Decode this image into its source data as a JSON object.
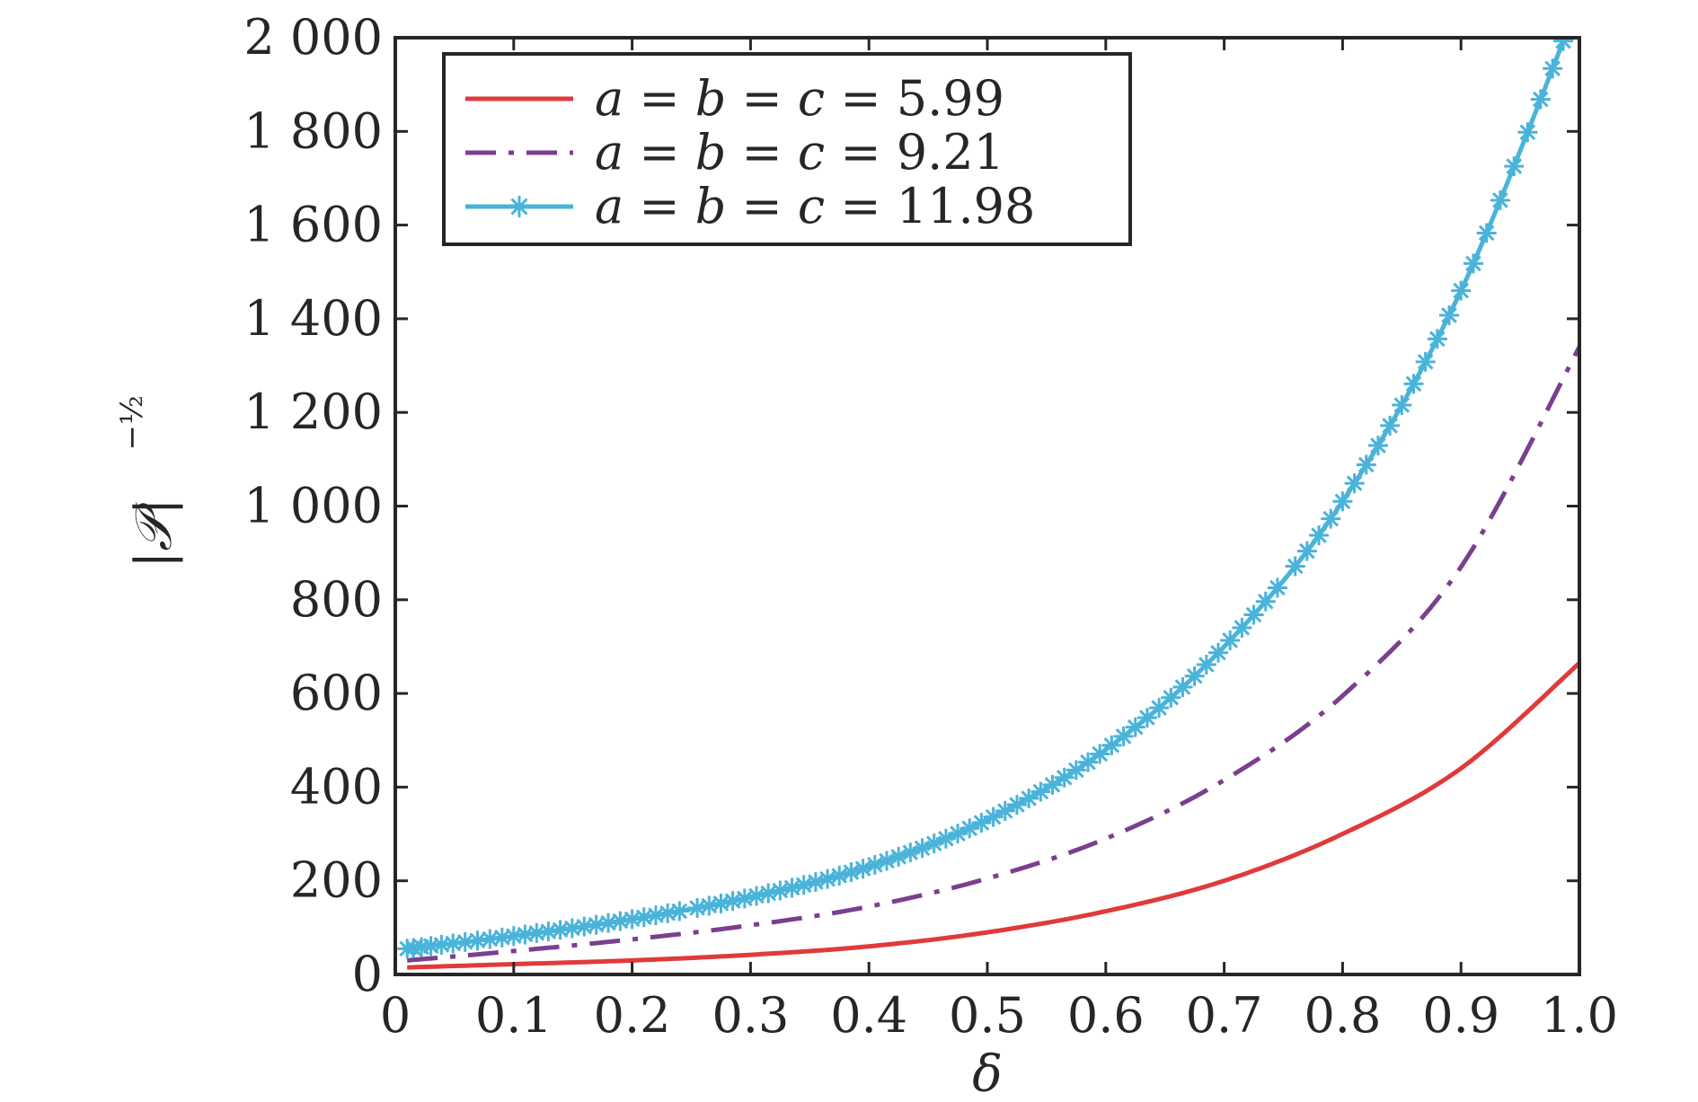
{
  "chart_data": {
    "type": "line",
    "title": "",
    "xlabel": "δ",
    "ylabel": "|𝒫|",
    "ylabel_exponent": "−½",
    "xlim": [
      0,
      1.0
    ],
    "ylim": [
      0,
      2000
    ],
    "xticks": [
      "0",
      "0.1",
      "0.2",
      "0.3",
      "0.4",
      "0.5",
      "0.6",
      "0.7",
      "0.8",
      "0.9",
      "1.0"
    ],
    "yticks": [
      "0",
      "200",
      "400",
      "600",
      "800",
      "1 000",
      "1 200",
      "1 400",
      "1 600",
      "1 800",
      "2 000"
    ],
    "grid": false,
    "legend_position": "top-left",
    "x": [
      0.01,
      0.1,
      0.2,
      0.3,
      0.4,
      0.5,
      0.6,
      0.7,
      0.8,
      0.9,
      1.0
    ],
    "series": [
      {
        "name": "a = b = c = 5.99",
        "legend_var": "a = b = c = ",
        "legend_val": "5.99",
        "color": "#e03a3a",
        "style": "solid",
        "marker": "none",
        "values": [
          15,
          22,
          30,
          42,
          60,
          90,
          135,
          200,
          300,
          440,
          665
        ]
      },
      {
        "name": "a = b = c = 9.21",
        "legend_var": "a = b = c = ",
        "legend_val": "9.21",
        "color": "#7b3f8f",
        "style": "dash-dot",
        "marker": "none",
        "values": [
          30,
          50,
          75,
          105,
          145,
          205,
          290,
          415,
          595,
          870,
          1340
        ]
      },
      {
        "name": "a = b = c = 11.98",
        "legend_var": "a = b = c = ",
        "legend_val": "11.98",
        "color": "#4ab3d9",
        "style": "solid",
        "marker": "asterisk",
        "values": [
          55,
          82,
          118,
          165,
          230,
          330,
          480,
          700,
          1010,
          1460,
          2080
        ]
      }
    ]
  }
}
